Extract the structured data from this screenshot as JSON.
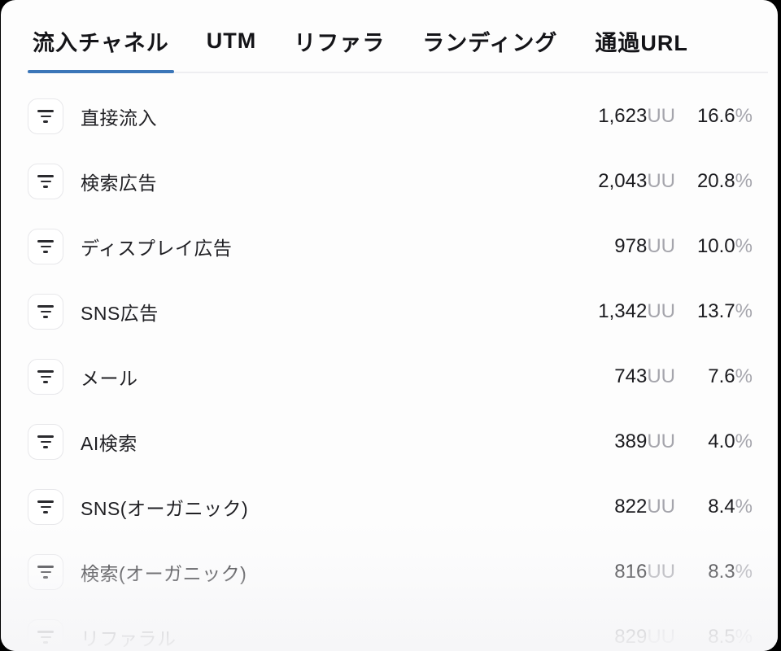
{
  "tabs": [
    {
      "label": "流入チャネル",
      "active": true
    },
    {
      "label": "UTM",
      "active": false
    },
    {
      "label": "リファラ",
      "active": false
    },
    {
      "label": "ランディング",
      "active": false
    },
    {
      "label": "通過URL",
      "active": false
    }
  ],
  "units": {
    "uu": "UU",
    "pct": "%"
  },
  "rows": [
    {
      "label": "直接流入",
      "uu": "1,623",
      "pct": "16.6"
    },
    {
      "label": "検索広告",
      "uu": "2,043",
      "pct": "20.8"
    },
    {
      "label": "ディスプレイ広告",
      "uu": "978",
      "pct": "10.0"
    },
    {
      "label": "SNS広告",
      "uu": "1,342",
      "pct": "13.7"
    },
    {
      "label": "メール",
      "uu": "743",
      "pct": "7.6"
    },
    {
      "label": "AI検索",
      "uu": "389",
      "pct": "4.0"
    },
    {
      "label": "SNS(オーガニック)",
      "uu": "822",
      "pct": "8.4"
    },
    {
      "label": "検索(オーガニック)",
      "uu": "816",
      "pct": "8.3"
    },
    {
      "label": "リファラル",
      "uu": "829",
      "pct": "8.5"
    }
  ],
  "colors": {
    "accent": "#3b76b8",
    "card_bg": "#fdfdfd",
    "divider": "#eeeef1",
    "unit_gray": "#a5a5ac"
  }
}
